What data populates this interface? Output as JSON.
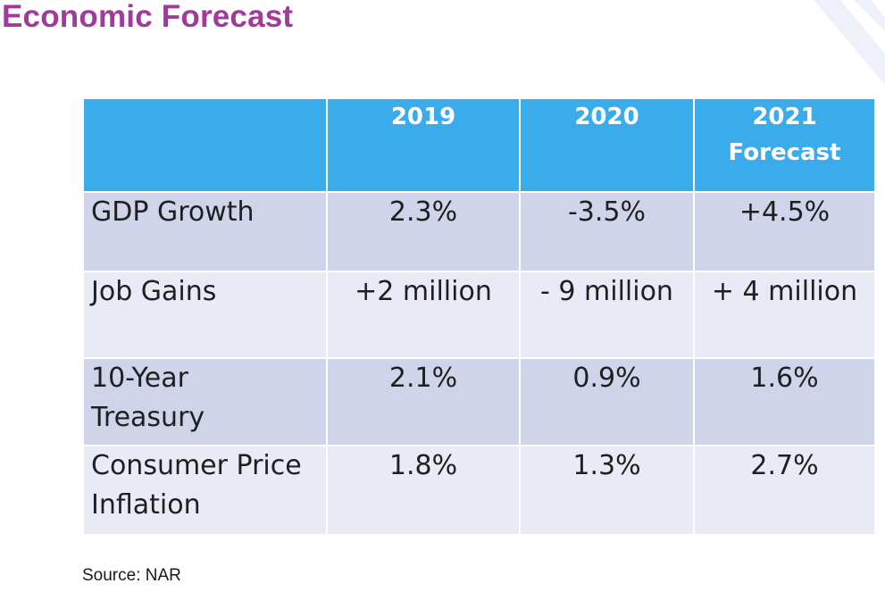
{
  "title": "Economic Forecast",
  "source": "Source: NAR",
  "colors": {
    "title": "#a03a9b",
    "header_bg": "#3aabeb",
    "row_dark": "#d0d4ea",
    "row_light": "#e8eaf5"
  },
  "table": {
    "headers": [
      "",
      "2019",
      "2020",
      "2021\nForecast"
    ],
    "rows": [
      {
        "label": "GDP Growth",
        "values": [
          "2.3%",
          "-3.5%",
          "+4.5%"
        ]
      },
      {
        "label": "Job Gains",
        "values": [
          "+2 million",
          "- 9 million",
          "+ 4 million"
        ]
      },
      {
        "label": "10-Year Treasury",
        "values": [
          "2.1%",
          "0.9%",
          "1.6%"
        ]
      },
      {
        "label": "Consumer Price Inflation",
        "values": [
          "1.8%",
          "1.3%",
          "2.7%"
        ]
      }
    ]
  }
}
